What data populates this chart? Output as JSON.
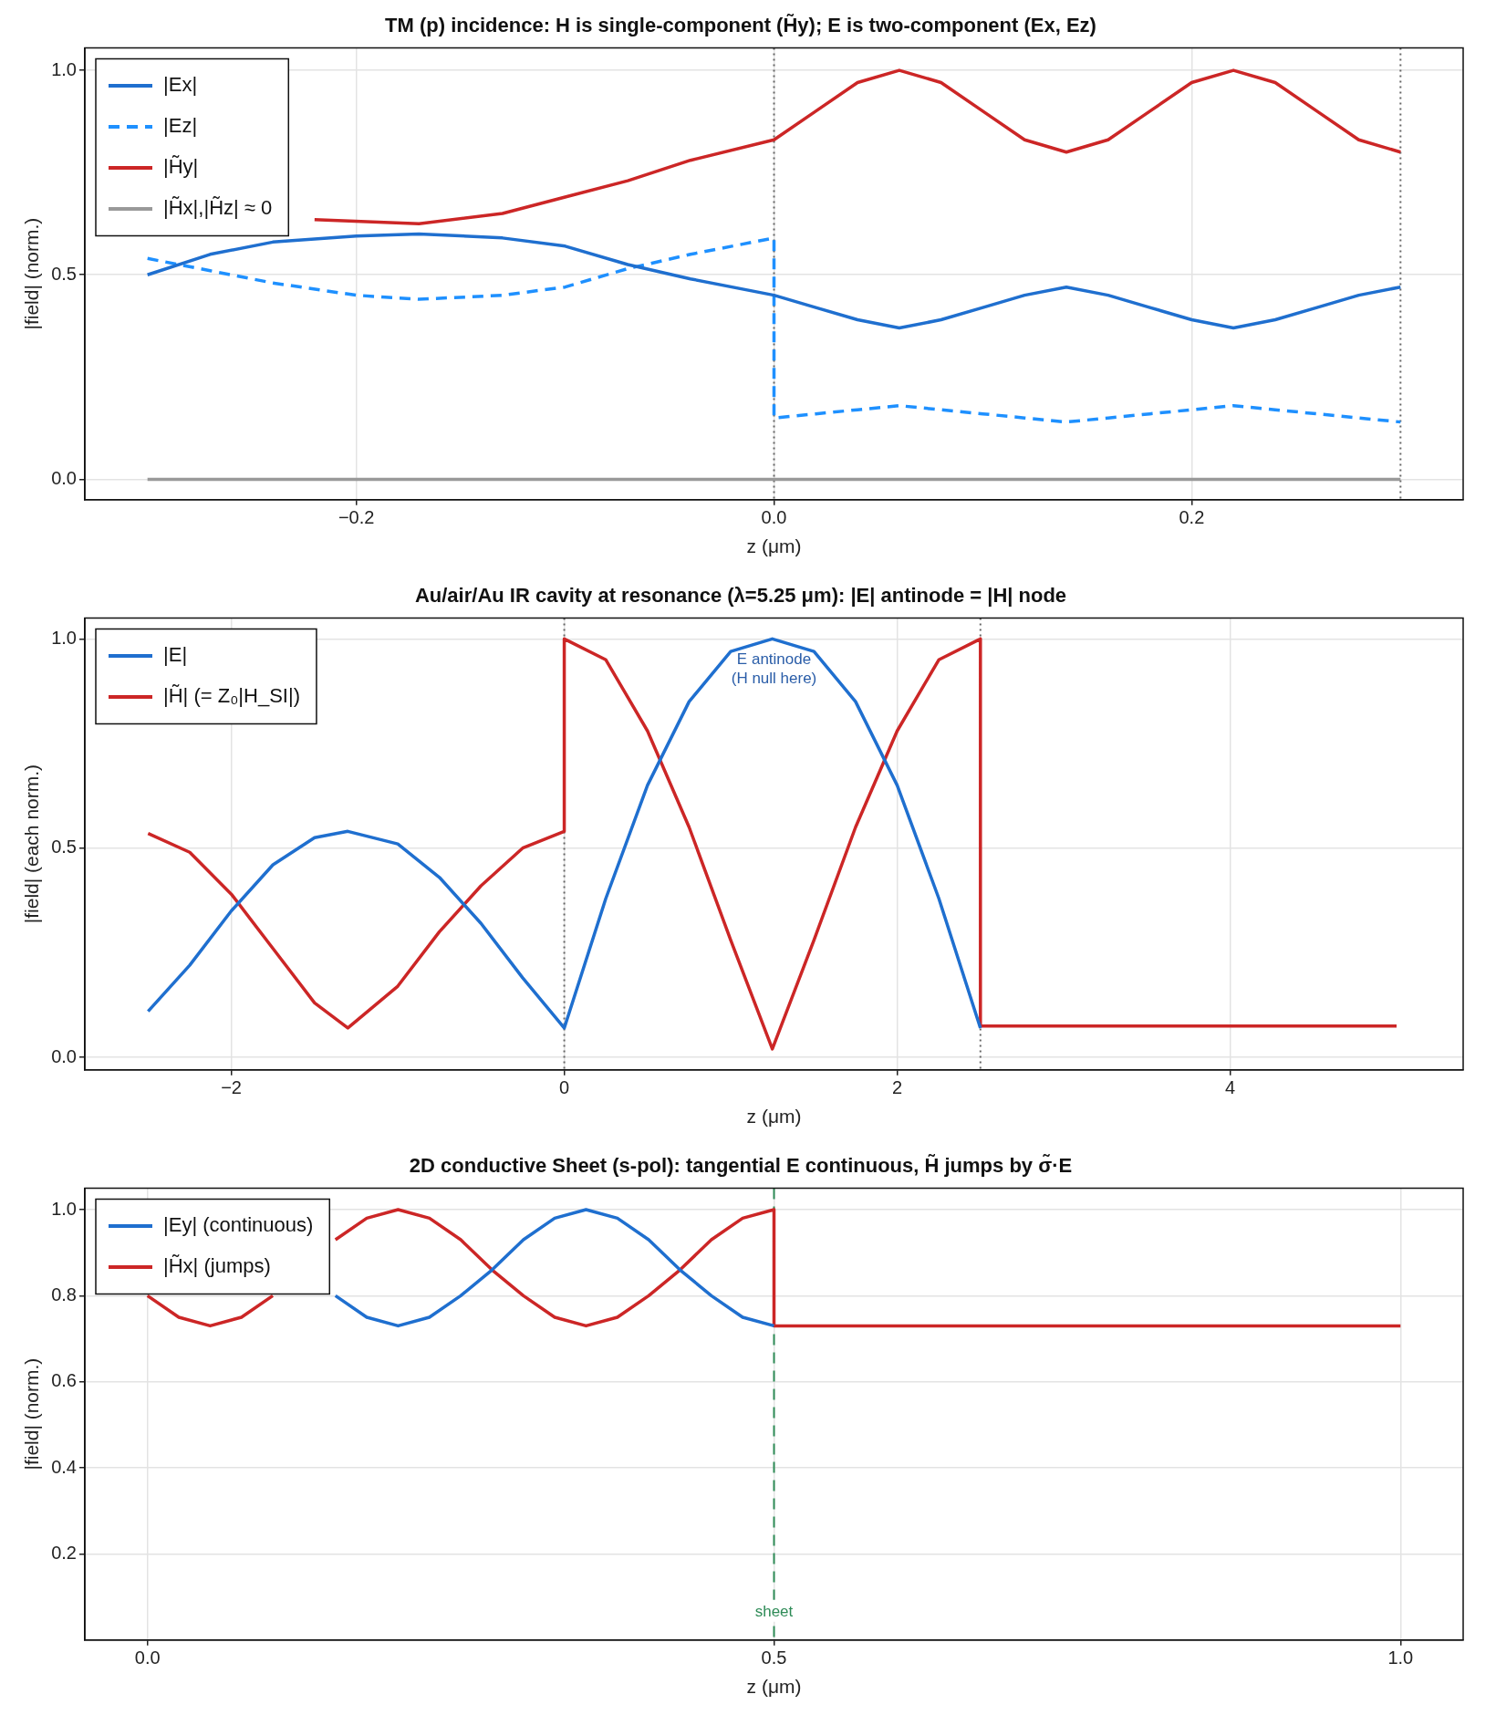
{
  "chart_data": [
    {
      "type": "line",
      "title": "TM (p) incidence: H is single-component (H̃y); E is two-component (Ex, Ez)",
      "xlabel": "z (μm)",
      "ylabel": "|field| (norm.)",
      "xlim": [
        -0.33,
        0.33
      ],
      "ylim": [
        -0.05,
        1.055
      ],
      "xticks": [
        {
          "value": -0.2,
          "label": "−0.2"
        },
        {
          "value": 0,
          "label": "0.0"
        },
        {
          "value": 0.2,
          "label": "0.2"
        }
      ],
      "yticks": [
        {
          "value": 0,
          "label": "0.0"
        },
        {
          "value": 0.5,
          "label": "0.5"
        },
        {
          "value": 1,
          "label": "1.0"
        }
      ],
      "grid": true,
      "legend": "top left",
      "ref_lines": [
        {
          "axis": "x",
          "value": 0,
          "color": "#666666",
          "line_style": "dotted"
        },
        {
          "axis": "x",
          "value": 0.3,
          "color": "#666666",
          "line_style": "dotted"
        }
      ],
      "series": [
        {
          "name": "|Ex|",
          "color": "#1f6fcf",
          "x": [
            -0.3,
            -0.27,
            -0.24,
            -0.2,
            -0.17,
            -0.13,
            -0.1,
            -0.07,
            -0.04,
            0,
            0.02,
            0.04,
            0.06,
            0.08,
            0.1,
            0.12,
            0.14,
            0.16,
            0.18,
            0.2,
            0.22,
            0.24,
            0.26,
            0.28,
            0.3
          ],
          "values": [
            0.5,
            0.55,
            0.58,
            0.595,
            0.6,
            0.59,
            0.57,
            0.525,
            0.49,
            0.45,
            0.42,
            0.39,
            0.37,
            0.39,
            0.42,
            0.45,
            0.47,
            0.45,
            0.42,
            0.39,
            0.37,
            0.39,
            0.42,
            0.45,
            0.47
          ]
        },
        {
          "name": "|Ez|",
          "color": "#1e90ff",
          "line_style": "dashed",
          "x": [
            -0.3,
            -0.27,
            -0.24,
            -0.2,
            -0.17,
            -0.13,
            -0.1,
            -0.07,
            -0.04,
            0,
            0,
            0.02,
            0.04,
            0.06,
            0.08,
            0.1,
            0.12,
            0.14,
            0.16,
            0.18,
            0.2,
            0.22,
            0.24,
            0.26,
            0.28,
            0.3
          ],
          "values": [
            0.54,
            0.51,
            0.48,
            0.45,
            0.44,
            0.45,
            0.47,
            0.515,
            0.55,
            0.59,
            0.15,
            0.16,
            0.17,
            0.18,
            0.17,
            0.16,
            0.15,
            0.14,
            0.15,
            0.16,
            0.17,
            0.18,
            0.17,
            0.16,
            0.15,
            0.14
          ]
        },
        {
          "name": "|H̃y|",
          "color": "#cc2626",
          "x": [
            -0.22,
            -0.17,
            -0.13,
            -0.1,
            -0.07,
            -0.04,
            0,
            0.02,
            0.04,
            0.06,
            0.08,
            0.1,
            0.12,
            0.14,
            0.16,
            0.18,
            0.2,
            0.22,
            0.24,
            0.26,
            0.28,
            0.3
          ],
          "values": [
            0.635,
            0.625,
            0.65,
            0.69,
            0.73,
            0.78,
            0.83,
            0.9,
            0.97,
            1.0,
            0.97,
            0.9,
            0.83,
            0.8,
            0.83,
            0.9,
            0.97,
            1.0,
            0.97,
            0.9,
            0.83,
            0.8
          ]
        },
        {
          "name": "|H̃x|,|H̃z| ≈ 0",
          "color": "#999999",
          "x": [
            -0.3,
            0.3
          ],
          "values": [
            0,
            0
          ]
        }
      ]
    },
    {
      "type": "line",
      "title": "Au/air/Au IR cavity at resonance (λ=5.25 μm): |E| antinode = |H| node",
      "xlabel": "z (μm)",
      "ylabel": "|field| (each norm.)",
      "xlim": [
        -2.88,
        5.4
      ],
      "ylim": [
        -0.03,
        1.05
      ],
      "xticks": [
        {
          "value": -2,
          "label": "−2"
        },
        0,
        2,
        4
      ],
      "yticks": [
        {
          "value": 0,
          "label": "0.0"
        },
        {
          "value": 0.5,
          "label": "0.5"
        },
        {
          "value": 1,
          "label": "1.0"
        }
      ],
      "grid": true,
      "legend": "top left",
      "ref_lines": [
        {
          "axis": "x",
          "value": 0,
          "color": "#666666",
          "line_style": "dotted"
        },
        {
          "axis": "x",
          "value": 2.5,
          "color": "#666666",
          "line_style": "dotted"
        }
      ],
      "annotations": [
        "E antinode\n(H null here)"
      ],
      "series": [
        {
          "name": "|E|",
          "color": "#1f6fcf",
          "x": [
            -2.5,
            -2.25,
            -2,
            -1.75,
            -1.5,
            -1.3,
            -1,
            -0.75,
            -0.5,
            -0.25,
            0,
            0.25,
            0.5,
            0.75,
            1,
            1.25,
            1.5,
            1.75,
            2,
            2.25,
            2.5
          ],
          "values": [
            0.11,
            0.22,
            0.35,
            0.46,
            0.525,
            0.54,
            0.51,
            0.43,
            0.32,
            0.19,
            0.07,
            0.38,
            0.65,
            0.85,
            0.97,
            1.0,
            0.97,
            0.85,
            0.65,
            0.38,
            0.07
          ]
        },
        {
          "name": "|H̃| (= Z₀|H_SI|)",
          "color": "#cc2626",
          "x": [
            -2.5,
            -2.25,
            -2,
            -1.75,
            -1.5,
            -1.3,
            -1,
            -0.75,
            -0.5,
            -0.25,
            0,
            0,
            0.25,
            0.5,
            0.75,
            1,
            1.25,
            1.5,
            1.75,
            2,
            2.25,
            2.5,
            2.5,
            5
          ],
          "values": [
            0.535,
            0.49,
            0.39,
            0.26,
            0.13,
            0.07,
            0.17,
            0.3,
            0.41,
            0.5,
            0.54,
            1.0,
            0.95,
            0.78,
            0.55,
            0.28,
            0.02,
            0.28,
            0.55,
            0.78,
            0.95,
            1.0,
            0.075,
            0.075
          ]
        }
      ]
    },
    {
      "type": "line",
      "title": "2D conductive Sheet (s-pol): tangential E continuous, H̃ jumps by σ̃·E",
      "xlabel": "z (μm)",
      "ylabel": "|field| (norm.)",
      "xlim": [
        -0.05,
        1.05
      ],
      "ylim": [
        0,
        1.05
      ],
      "xticks": [
        {
          "value": 0,
          "label": "0.0"
        },
        0.5,
        {
          "value": 1,
          "label": "1.0"
        }
      ],
      "yticks": [
        0.2,
        0.4,
        0.6,
        0.8,
        {
          "value": 1,
          "label": "1.0"
        }
      ],
      "grid": true,
      "legend": "top left",
      "ref_lines": [
        {
          "axis": "x",
          "value": 0.5,
          "label": "sheet",
          "color": "#2e8b57",
          "line_style": "dashed"
        }
      ],
      "series": [
        {
          "name": "|Ey| (continuous)",
          "color": "#1f6fcf",
          "x": [
            0.15,
            0.175,
            0.2,
            0.225,
            0.25,
            0.275,
            0.3,
            0.325,
            0.35,
            0.375,
            0.4,
            0.425,
            0.45,
            0.475,
            0.5
          ],
          "values": [
            0.8,
            0.75,
            0.73,
            0.75,
            0.8,
            0.86,
            0.93,
            0.98,
            1.0,
            0.98,
            0.93,
            0.86,
            0.8,
            0.75,
            0.73
          ]
        },
        {
          "name": "|H̃x| (jumps)",
          "color": "#cc2626",
          "x": [
            0,
            0.025,
            0.05,
            0.075,
            0.1,
            0.125,
            0.15,
            0.175,
            0.2,
            0.225,
            0.25,
            0.275,
            0.3,
            0.325,
            0.35,
            0.375,
            0.4,
            0.425,
            0.45,
            0.475,
            0.5,
            0.5,
            1
          ],
          "values": [
            0.8,
            0.75,
            0.73,
            0.75,
            0.8,
            null,
            0.93,
            0.98,
            1.0,
            0.98,
            0.93,
            0.86,
            0.8,
            0.75,
            0.73,
            0.75,
            0.8,
            0.86,
            0.93,
            0.98,
            1.0,
            0.73,
            0.73
          ]
        }
      ]
    }
  ]
}
